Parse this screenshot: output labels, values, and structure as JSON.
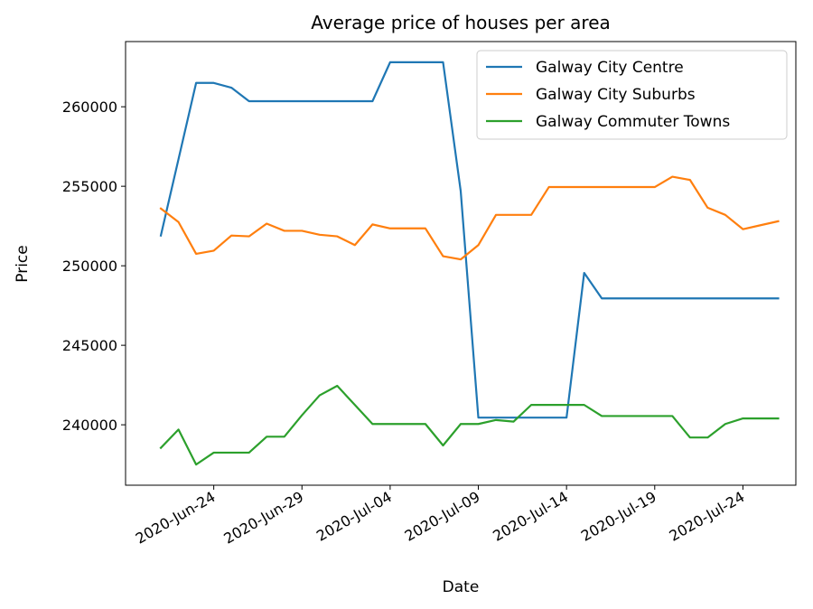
{
  "chart_data": {
    "type": "line",
    "title": "Average price of houses per area",
    "xlabel": "Date",
    "ylabel": "Price",
    "grid": false,
    "legend_position": "top-right",
    "x": [
      "2020-06-21",
      "2020-06-22",
      "2020-06-23",
      "2020-06-24",
      "2020-06-25",
      "2020-06-26",
      "2020-06-27",
      "2020-06-28",
      "2020-06-29",
      "2020-06-30",
      "2020-07-01",
      "2020-07-02",
      "2020-07-03",
      "2020-07-04",
      "2020-07-05",
      "2020-07-06",
      "2020-07-07",
      "2020-07-08",
      "2020-07-09",
      "2020-07-10",
      "2020-07-11",
      "2020-07-12",
      "2020-07-13",
      "2020-07-14",
      "2020-07-15",
      "2020-07-16",
      "2020-07-17",
      "2020-07-18",
      "2020-07-19",
      "2020-07-20",
      "2020-07-21",
      "2020-07-22",
      "2020-07-23",
      "2020-07-24",
      "2020-07-25",
      "2020-07-26"
    ],
    "ylim": [
      236200,
      264100
    ],
    "xlim": [
      "2020-06-19",
      "2020-07-27"
    ],
    "x_ticks": [
      "2020-06-24",
      "2020-06-29",
      "2020-07-04",
      "2020-07-09",
      "2020-07-14",
      "2020-07-19",
      "2020-07-24"
    ],
    "x_tick_labels": [
      "2020-Jun-24",
      "2020-Jun-29",
      "2020-Jul-04",
      "2020-Jul-09",
      "2020-Jul-14",
      "2020-Jul-19",
      "2020-Jul-24"
    ],
    "y_ticks": [
      240000,
      245000,
      250000,
      255000,
      260000
    ],
    "y_tick_labels": [
      "240000",
      "245000",
      "250000",
      "255000",
      "260000"
    ],
    "series": [
      {
        "name": "Galway City Centre",
        "color": "#1f77b4",
        "values": [
          251900,
          256700,
          261500,
          261500,
          261200,
          260350,
          260350,
          260350,
          260350,
          260350,
          260350,
          260350,
          260350,
          262800,
          262800,
          262800,
          262800,
          254700,
          240450,
          240450,
          240450,
          240450,
          240450,
          240450,
          249550,
          247950,
          247950,
          247950,
          247950,
          247950,
          247950,
          247950,
          247950,
          247950,
          247950,
          247950
        ]
      },
      {
        "name": "Galway City Suburbs",
        "color": "#ff7f0e",
        "values": [
          253600,
          252750,
          250750,
          250950,
          251900,
          251850,
          252650,
          252200,
          252200,
          251950,
          251850,
          251300,
          252600,
          252350,
          252350,
          252350,
          250600,
          250400,
          251300,
          253200,
          253200,
          253200,
          254950,
          254950,
          254950,
          254950,
          254950,
          254950,
          254950,
          255600,
          255400,
          253650,
          253200,
          252300,
          252550,
          252800
        ]
      },
      {
        "name": "Galway Commuter Towns",
        "color": "#2ca02c",
        "values": [
          238550,
          239700,
          237500,
          238250,
          238250,
          238250,
          239250,
          239250,
          240600,
          241850,
          242450,
          241250,
          240050,
          240050,
          240050,
          240050,
          238700,
          240050,
          240050,
          240300,
          240200,
          241250,
          241250,
          241250,
          241250,
          240550,
          240550,
          240550,
          240550,
          240550,
          239200,
          239200,
          240050,
          240400,
          240400,
          240400
        ]
      }
    ]
  }
}
